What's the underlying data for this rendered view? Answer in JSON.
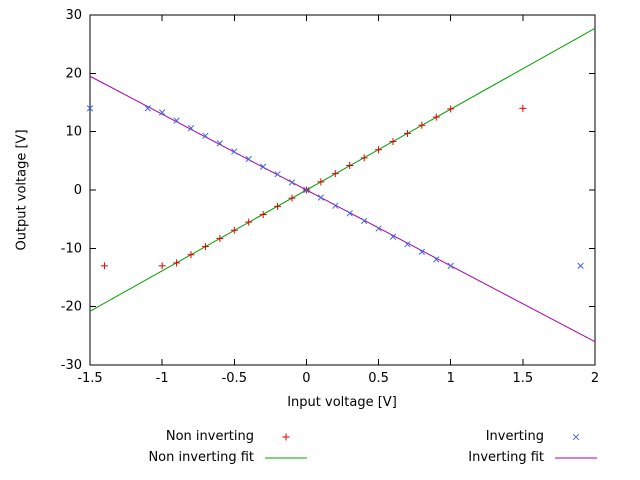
{
  "chart_data": {
    "type": "scatter",
    "title": "",
    "xlabel": "Input voltage [V]",
    "ylabel": "Output voltage [V]",
    "xlim": [
      -1.5,
      2
    ],
    "ylim": [
      -30,
      30
    ],
    "xticks": [
      -1.5,
      -1,
      -0.5,
      0,
      0.5,
      1,
      1.5,
      2
    ],
    "xtick_labels": [
      "-1.5",
      "-1",
      "-0.5",
      "0",
      "0.5",
      "1",
      "1.5",
      "2"
    ],
    "yticks": [
      -30,
      -20,
      -10,
      0,
      10,
      20,
      30
    ],
    "ytick_labels": [
      "-30",
      "-20",
      "-10",
      "0",
      "10",
      "20",
      "30"
    ],
    "grid": false,
    "legend_position": "below",
    "axis_color": "#000000",
    "background": "#ffffff",
    "series": [
      {
        "name": "Non inverting",
        "type": "scatter",
        "marker": "plus",
        "color": "#dd0000",
        "points": [
          [
            -1.4,
            -13
          ],
          [
            -1.0,
            -13
          ],
          [
            -0.9,
            -12.5
          ],
          [
            -0.8,
            -11.1
          ],
          [
            -0.7,
            -9.7
          ],
          [
            -0.6,
            -8.3
          ],
          [
            -0.5,
            -6.9
          ],
          [
            -0.4,
            -5.5
          ],
          [
            -0.3,
            -4.2
          ],
          [
            -0.2,
            -2.8
          ],
          [
            -0.1,
            -1.4
          ],
          [
            0,
            0
          ],
          [
            0.1,
            1.4
          ],
          [
            0.2,
            2.8
          ],
          [
            0.3,
            4.2
          ],
          [
            0.4,
            5.5
          ],
          [
            0.5,
            6.9
          ],
          [
            0.6,
            8.3
          ],
          [
            0.7,
            9.7
          ],
          [
            0.8,
            11.1
          ],
          [
            0.9,
            12.5
          ],
          [
            1.0,
            13.9
          ],
          [
            1.5,
            14
          ]
        ]
      },
      {
        "name": "Inverting",
        "type": "scatter",
        "marker": "cross",
        "color": "#4169e1",
        "points": [
          [
            -1.5,
            14
          ],
          [
            -1.1,
            14
          ],
          [
            -1.0,
            13.3
          ],
          [
            -0.9,
            11.9
          ],
          [
            -0.8,
            10.6
          ],
          [
            -0.7,
            9.3
          ],
          [
            -0.6,
            8.0
          ],
          [
            -0.5,
            6.6
          ],
          [
            -0.4,
            5.3
          ],
          [
            -0.3,
            4.0
          ],
          [
            -0.2,
            2.7
          ],
          [
            -0.1,
            1.3
          ],
          [
            0,
            0
          ],
          [
            0.1,
            -1.3
          ],
          [
            0.2,
            -2.7
          ],
          [
            0.3,
            -4.0
          ],
          [
            0.4,
            -5.3
          ],
          [
            0.5,
            -6.6
          ],
          [
            0.6,
            -8.0
          ],
          [
            0.7,
            -9.3
          ],
          [
            0.8,
            -10.6
          ],
          [
            0.9,
            -11.9
          ],
          [
            1.0,
            -13.0
          ],
          [
            1.9,
            -13
          ]
        ]
      },
      {
        "name": "Non inverting fit",
        "type": "line",
        "color": "#00a000",
        "slope": 13.86,
        "intercept": 0,
        "x_range": [
          -1.5,
          2
        ]
      },
      {
        "name": "Inverting fit",
        "type": "line",
        "color": "#aa00aa",
        "slope": -13.0,
        "intercept": 0,
        "x_range": [
          -1.5,
          2
        ]
      }
    ]
  }
}
